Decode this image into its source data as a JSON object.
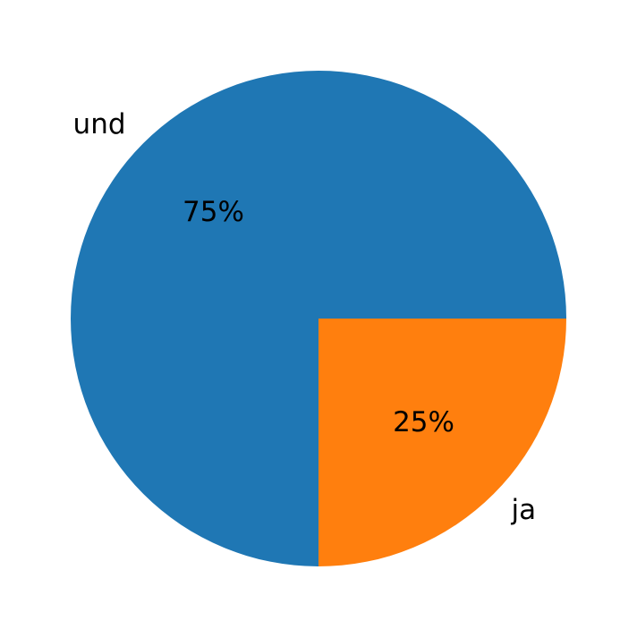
{
  "chart_data": {
    "type": "pie",
    "categories": [
      "und",
      "ja"
    ],
    "values": [
      75,
      25
    ],
    "value_labels": [
      "75%",
      "25%"
    ],
    "colors": [
      "#1f77b4",
      "#ff7f0e"
    ]
  }
}
